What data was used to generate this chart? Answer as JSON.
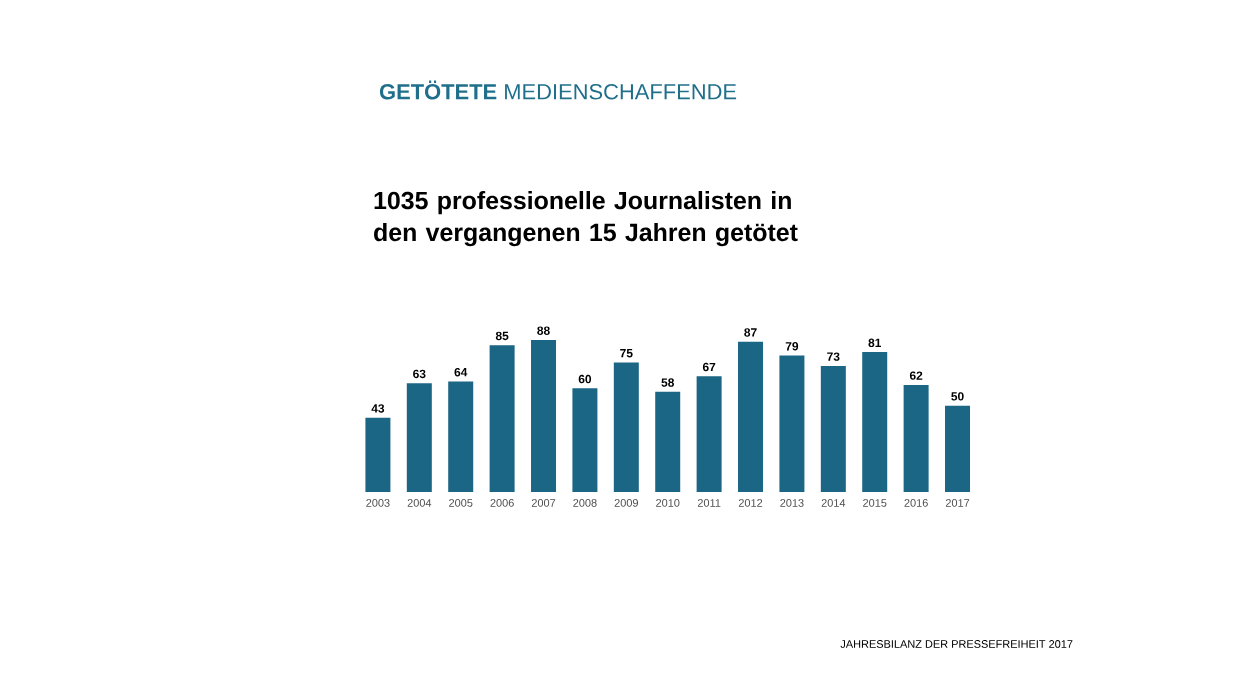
{
  "chart_data": {
    "type": "bar",
    "title": "**GETÖTETE** MEDIENSCHAFFENDE",
    "subtitle": "1035 professionelle Journalisten in den vergangenen 15 Jahren getötet",
    "categories": [
      "2003",
      "2004",
      "2005",
      "2006",
      "2007",
      "2008",
      "2009",
      "2010",
      "2011",
      "2012",
      "2013",
      "2014",
      "2015",
      "2016",
      "2017"
    ],
    "values": [
      43,
      63,
      64,
      85,
      88,
      60,
      75,
      58,
      67,
      87,
      79,
      73,
      81,
      62,
      50
    ],
    "color": "#1b6585",
    "data_labels": true,
    "annotations": [
      "JAHRESBILANZ DER PRESSEFREIHEIT 2017"
    ]
  }
}
